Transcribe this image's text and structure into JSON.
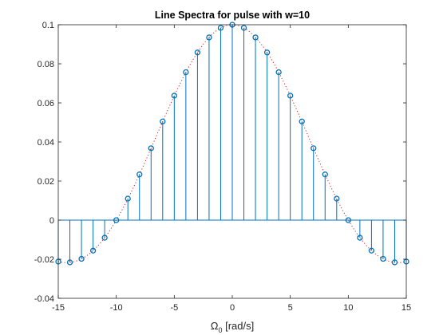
{
  "chart_data": {
    "type": "line",
    "title": "Line Spectra for pulse with w=10",
    "xlabel_symbol": "Ω",
    "xlabel_sub": "0",
    "xlabel_rest": " [rad/s]",
    "ylabel": "",
    "xlim": [
      -15,
      15
    ],
    "ylim": [
      -0.04,
      0.1
    ],
    "xticks": [
      -15,
      -10,
      -5,
      0,
      5,
      10,
      15
    ],
    "yticks": [
      -0.04,
      -0.02,
      0,
      0.02,
      0.04,
      0.06,
      0.08,
      0.1
    ],
    "ytick_labels": [
      "-0.04",
      "-0.02",
      "0",
      "0.02",
      "0.04",
      "0.06",
      "0.08",
      "0.1"
    ],
    "grid": false,
    "series": [
      {
        "style": "stem",
        "color": "#0072BD",
        "marker": "o",
        "x": [
          -15,
          -14,
          -13,
          -12,
          -11,
          -10,
          -9,
          -8,
          -7,
          -6,
          -5,
          -4,
          -3,
          -2,
          -1,
          0,
          1,
          2,
          3,
          4,
          5,
          6,
          7,
          8,
          9,
          10,
          11,
          12,
          13,
          14,
          15
        ],
        "values": [
          -0.0212,
          -0.0216,
          -0.0198,
          -0.0156,
          -0.009,
          0.0,
          0.011,
          0.0234,
          0.0368,
          0.0505,
          0.0637,
          0.0757,
          0.0858,
          0.0935,
          0.0984,
          0.1,
          0.0984,
          0.0935,
          0.0858,
          0.0757,
          0.0637,
          0.0505,
          0.0368,
          0.0234,
          0.011,
          0.0,
          -0.009,
          -0.0156,
          -0.0198,
          -0.0216,
          -0.0212
        ]
      },
      {
        "style": "dotted-line",
        "color": "#d62728",
        "x_range": [
          -15,
          15
        ],
        "function": "0.1*sinc(x/10)"
      }
    ]
  }
}
